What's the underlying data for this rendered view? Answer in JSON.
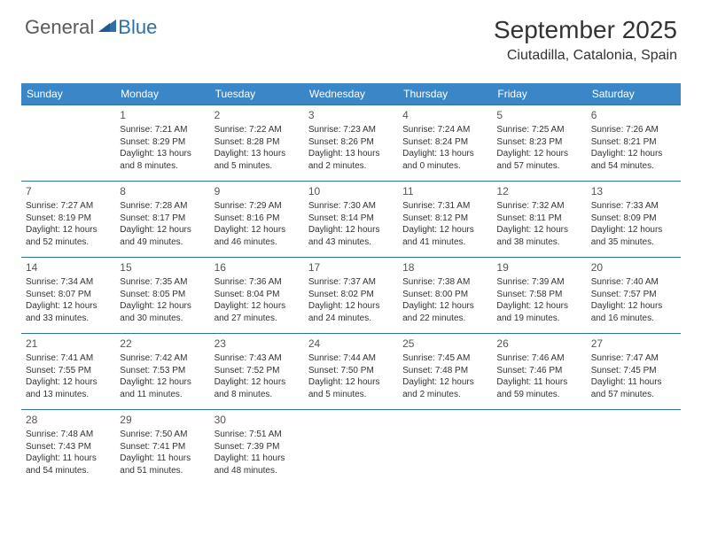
{
  "logo": {
    "general": "General",
    "blue": "Blue"
  },
  "title": "September 2025",
  "location": "Ciutadilla, Catalonia, Spain",
  "colors": {
    "header_bg": "#3b86c6",
    "header_text": "#ffffff",
    "border": "#2f6fa8",
    "logo_gray": "#5a5a5a",
    "logo_blue": "#2f6fa8",
    "text": "#333333",
    "background": "#ffffff"
  },
  "weekdays": [
    "Sunday",
    "Monday",
    "Tuesday",
    "Wednesday",
    "Thursday",
    "Friday",
    "Saturday"
  ],
  "weeks": [
    [
      null,
      {
        "n": "1",
        "sr": "Sunrise: 7:21 AM",
        "ss": "Sunset: 8:29 PM",
        "d1": "Daylight: 13 hours",
        "d2": "and 8 minutes."
      },
      {
        "n": "2",
        "sr": "Sunrise: 7:22 AM",
        "ss": "Sunset: 8:28 PM",
        "d1": "Daylight: 13 hours",
        "d2": "and 5 minutes."
      },
      {
        "n": "3",
        "sr": "Sunrise: 7:23 AM",
        "ss": "Sunset: 8:26 PM",
        "d1": "Daylight: 13 hours",
        "d2": "and 2 minutes."
      },
      {
        "n": "4",
        "sr": "Sunrise: 7:24 AM",
        "ss": "Sunset: 8:24 PM",
        "d1": "Daylight: 13 hours",
        "d2": "and 0 minutes."
      },
      {
        "n": "5",
        "sr": "Sunrise: 7:25 AM",
        "ss": "Sunset: 8:23 PM",
        "d1": "Daylight: 12 hours",
        "d2": "and 57 minutes."
      },
      {
        "n": "6",
        "sr": "Sunrise: 7:26 AM",
        "ss": "Sunset: 8:21 PM",
        "d1": "Daylight: 12 hours",
        "d2": "and 54 minutes."
      }
    ],
    [
      {
        "n": "7",
        "sr": "Sunrise: 7:27 AM",
        "ss": "Sunset: 8:19 PM",
        "d1": "Daylight: 12 hours",
        "d2": "and 52 minutes."
      },
      {
        "n": "8",
        "sr": "Sunrise: 7:28 AM",
        "ss": "Sunset: 8:17 PM",
        "d1": "Daylight: 12 hours",
        "d2": "and 49 minutes."
      },
      {
        "n": "9",
        "sr": "Sunrise: 7:29 AM",
        "ss": "Sunset: 8:16 PM",
        "d1": "Daylight: 12 hours",
        "d2": "and 46 minutes."
      },
      {
        "n": "10",
        "sr": "Sunrise: 7:30 AM",
        "ss": "Sunset: 8:14 PM",
        "d1": "Daylight: 12 hours",
        "d2": "and 43 minutes."
      },
      {
        "n": "11",
        "sr": "Sunrise: 7:31 AM",
        "ss": "Sunset: 8:12 PM",
        "d1": "Daylight: 12 hours",
        "d2": "and 41 minutes."
      },
      {
        "n": "12",
        "sr": "Sunrise: 7:32 AM",
        "ss": "Sunset: 8:11 PM",
        "d1": "Daylight: 12 hours",
        "d2": "and 38 minutes."
      },
      {
        "n": "13",
        "sr": "Sunrise: 7:33 AM",
        "ss": "Sunset: 8:09 PM",
        "d1": "Daylight: 12 hours",
        "d2": "and 35 minutes."
      }
    ],
    [
      {
        "n": "14",
        "sr": "Sunrise: 7:34 AM",
        "ss": "Sunset: 8:07 PM",
        "d1": "Daylight: 12 hours",
        "d2": "and 33 minutes."
      },
      {
        "n": "15",
        "sr": "Sunrise: 7:35 AM",
        "ss": "Sunset: 8:05 PM",
        "d1": "Daylight: 12 hours",
        "d2": "and 30 minutes."
      },
      {
        "n": "16",
        "sr": "Sunrise: 7:36 AM",
        "ss": "Sunset: 8:04 PM",
        "d1": "Daylight: 12 hours",
        "d2": "and 27 minutes."
      },
      {
        "n": "17",
        "sr": "Sunrise: 7:37 AM",
        "ss": "Sunset: 8:02 PM",
        "d1": "Daylight: 12 hours",
        "d2": "and 24 minutes."
      },
      {
        "n": "18",
        "sr": "Sunrise: 7:38 AM",
        "ss": "Sunset: 8:00 PM",
        "d1": "Daylight: 12 hours",
        "d2": "and 22 minutes."
      },
      {
        "n": "19",
        "sr": "Sunrise: 7:39 AM",
        "ss": "Sunset: 7:58 PM",
        "d1": "Daylight: 12 hours",
        "d2": "and 19 minutes."
      },
      {
        "n": "20",
        "sr": "Sunrise: 7:40 AM",
        "ss": "Sunset: 7:57 PM",
        "d1": "Daylight: 12 hours",
        "d2": "and 16 minutes."
      }
    ],
    [
      {
        "n": "21",
        "sr": "Sunrise: 7:41 AM",
        "ss": "Sunset: 7:55 PM",
        "d1": "Daylight: 12 hours",
        "d2": "and 13 minutes."
      },
      {
        "n": "22",
        "sr": "Sunrise: 7:42 AM",
        "ss": "Sunset: 7:53 PM",
        "d1": "Daylight: 12 hours",
        "d2": "and 11 minutes."
      },
      {
        "n": "23",
        "sr": "Sunrise: 7:43 AM",
        "ss": "Sunset: 7:52 PM",
        "d1": "Daylight: 12 hours",
        "d2": "and 8 minutes."
      },
      {
        "n": "24",
        "sr": "Sunrise: 7:44 AM",
        "ss": "Sunset: 7:50 PM",
        "d1": "Daylight: 12 hours",
        "d2": "and 5 minutes."
      },
      {
        "n": "25",
        "sr": "Sunrise: 7:45 AM",
        "ss": "Sunset: 7:48 PM",
        "d1": "Daylight: 12 hours",
        "d2": "and 2 minutes."
      },
      {
        "n": "26",
        "sr": "Sunrise: 7:46 AM",
        "ss": "Sunset: 7:46 PM",
        "d1": "Daylight: 11 hours",
        "d2": "and 59 minutes."
      },
      {
        "n": "27",
        "sr": "Sunrise: 7:47 AM",
        "ss": "Sunset: 7:45 PM",
        "d1": "Daylight: 11 hours",
        "d2": "and 57 minutes."
      }
    ],
    [
      {
        "n": "28",
        "sr": "Sunrise: 7:48 AM",
        "ss": "Sunset: 7:43 PM",
        "d1": "Daylight: 11 hours",
        "d2": "and 54 minutes."
      },
      {
        "n": "29",
        "sr": "Sunrise: 7:50 AM",
        "ss": "Sunset: 7:41 PM",
        "d1": "Daylight: 11 hours",
        "d2": "and 51 minutes."
      },
      {
        "n": "30",
        "sr": "Sunrise: 7:51 AM",
        "ss": "Sunset: 7:39 PM",
        "d1": "Daylight: 11 hours",
        "d2": "and 48 minutes."
      },
      null,
      null,
      null,
      null
    ]
  ]
}
